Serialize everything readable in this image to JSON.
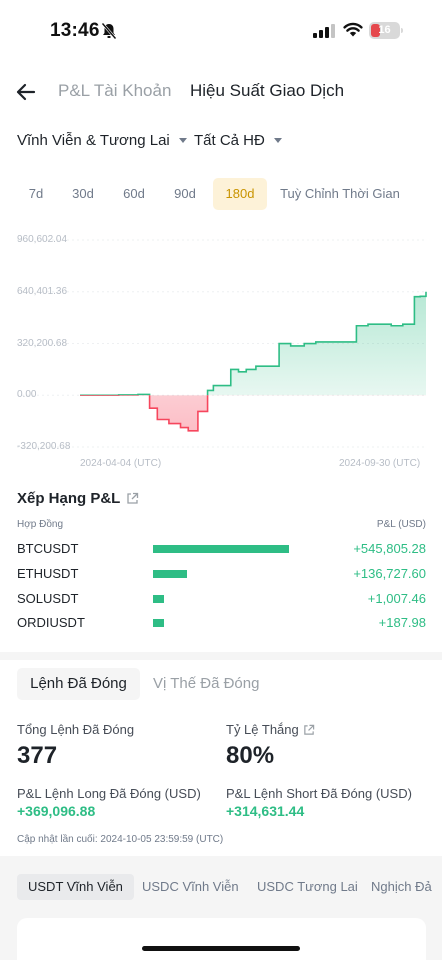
{
  "status_bar": {
    "time": "13:46",
    "battery": "16",
    "icons": [
      "bell-slash-icon",
      "signal-icon",
      "wifi-icon",
      "battery-icon"
    ]
  },
  "header": {
    "back_icon": "arrow-left-icon",
    "tab_account": "P&L Tài Khoản",
    "tab_performance": "Hiệu Suất Giao Dịch"
  },
  "filters": {
    "market": "Vĩnh Viễn & Tương Lai",
    "contract": "Tất Cả HĐ"
  },
  "periods": [
    {
      "label": "7d",
      "active": false
    },
    {
      "label": "30d",
      "active": false
    },
    {
      "label": "60d",
      "active": false
    },
    {
      "label": "90d",
      "active": false
    },
    {
      "label": "180d",
      "active": true
    },
    {
      "label": "Tuỳ Chỉnh Thời Gian",
      "active": false
    }
  ],
  "chart_data": {
    "type": "area",
    "y_ticks": [
      "960,602.04",
      "640,401.36",
      "320,200.68",
      "0.00",
      "-320,200.68"
    ],
    "x_ticks": [
      "2024-04-04 (UTC)",
      "2024-09-30 (UTC)"
    ],
    "ylim": [
      -320200.68,
      960602.04
    ],
    "grid": true,
    "colors": {
      "positive": "#2ebd85",
      "negative": "#f6465d"
    },
    "x": [
      "2024-04-04",
      "2024-04-24",
      "2024-05-04",
      "2024-05-10",
      "2024-05-14",
      "2024-05-20",
      "2024-05-26",
      "2024-05-30",
      "2024-06-04",
      "2024-06-09",
      "2024-06-12",
      "2024-06-16",
      "2024-06-21",
      "2024-06-25",
      "2024-06-29",
      "2024-07-04",
      "2024-07-10",
      "2024-07-16",
      "2024-07-22",
      "2024-07-29",
      "2024-08-04",
      "2024-08-11",
      "2024-08-18",
      "2024-08-25",
      "2024-08-31",
      "2024-09-06",
      "2024-09-12",
      "2024-09-18",
      "2024-09-24",
      "2024-09-27",
      "2024-09-30"
    ],
    "values": [
      0,
      2000,
      5000,
      -80000,
      -150000,
      -175000,
      -200000,
      -220000,
      -100000,
      30000,
      60000,
      60000,
      160000,
      145000,
      160000,
      180000,
      180000,
      320000,
      305000,
      320000,
      330000,
      330000,
      330000,
      430000,
      440000,
      440000,
      430000,
      440000,
      610000,
      612000,
      640401
    ]
  },
  "ranking": {
    "title": "Xếp Hạng P&L",
    "link_icon": "external-link-icon",
    "col_contract": "Hợp Đồng",
    "col_pnl": "P&L (USD)",
    "rows": [
      {
        "symbol": "BTCUSDT",
        "pnl": "+545,805.28",
        "value": 545805.28
      },
      {
        "symbol": "ETHUSDT",
        "pnl": "+136,727.60",
        "value": 136727.6
      },
      {
        "symbol": "SOLUSDT",
        "pnl": "+1,007.46",
        "value": 1007.46
      },
      {
        "symbol": "ORDIUSDT",
        "pnl": "+187.98",
        "value": 187.98
      }
    ]
  },
  "closed": {
    "tab_orders": "Lệnh Đã Đóng",
    "tab_positions": "Vị Thế Đã Đóng",
    "total_label": "Tổng Lệnh Đã Đóng",
    "total_value": "377",
    "winrate_label": "Tỷ Lệ Thắng",
    "winrate_value": "80%",
    "long_label": "P&L Lệnh Long Đã Đóng (USD)",
    "long_value": "+369,096.88",
    "short_label": "P&L Lệnh Short Đã Đóng (USD)",
    "short_value": "+314,631.44",
    "updated": "Cập nhật lần cuối: 2024-10-05 23:59:59 (UTC)"
  },
  "bottom_tabs": [
    {
      "label": "USDT Vĩnh Viễn",
      "active": true
    },
    {
      "label": "USDC Vĩnh Viễn",
      "active": false
    },
    {
      "label": "USDC Tương Lai",
      "active": false
    },
    {
      "label": "Nghịch Đả",
      "active": false
    }
  ]
}
